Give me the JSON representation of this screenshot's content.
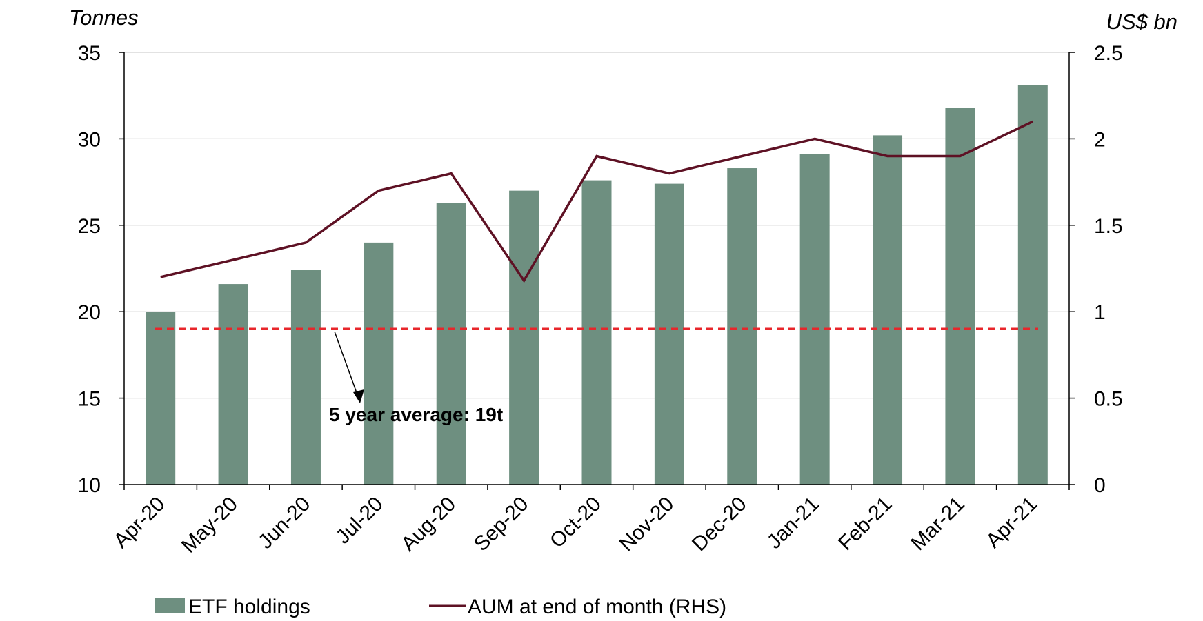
{
  "chart_data": {
    "type": "bar",
    "categories": [
      "Apr-20",
      "May-20",
      "Jun-20",
      "Jul-20",
      "Aug-20",
      "Sep-20",
      "Oct-20",
      "Nov-20",
      "Dec-20",
      "Jan-21",
      "Feb-21",
      "Mar-21",
      "Apr-21"
    ],
    "series": [
      {
        "name": "ETF holdings",
        "type": "bar",
        "axis": "left",
        "color": "#6e8f80",
        "values": [
          20.0,
          21.6,
          22.4,
          24.0,
          26.3,
          27.0,
          27.6,
          27.4,
          28.3,
          29.1,
          30.2,
          31.8,
          33.1
        ]
      },
      {
        "name": "AUM at end of month (RHS)",
        "type": "line",
        "axis": "right",
        "color": "#5e1124",
        "values": [
          1.2,
          1.3,
          1.4,
          1.7,
          1.8,
          1.18,
          1.9,
          1.8,
          1.9,
          2.0,
          1.9,
          1.9,
          2.1
        ]
      }
    ],
    "reference_line": {
      "value": 19,
      "axis": "left",
      "style": "dashed",
      "color": "#e8262b"
    },
    "annotation": "5 year average: 19t",
    "left_axis": {
      "unit": "Tonnes",
      "ylim": [
        10,
        35
      ],
      "ticks": [
        "10",
        "15",
        "20",
        "25",
        "30",
        "35"
      ]
    },
    "right_axis": {
      "unit": "US$ bn",
      "ylim": [
        0,
        2.5
      ],
      "ticks": [
        "0",
        "0.5",
        "1",
        "1.5",
        "2",
        "2.5"
      ]
    },
    "grid": true,
    "legend_position": "bottom"
  }
}
